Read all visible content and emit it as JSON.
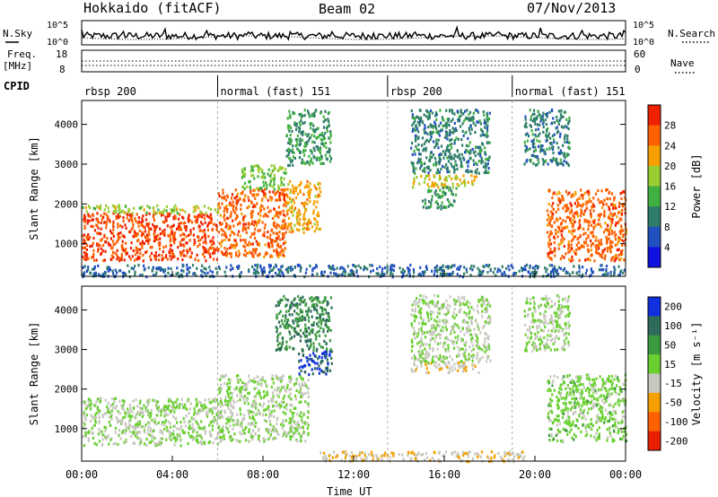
{
  "header": {
    "station": "Hokkaido (fitACF)",
    "beam": "Beam 02",
    "date": "07/Nov/2013"
  },
  "noise_panel": {
    "left_label": "N.Sky",
    "right_label": "N.Search",
    "left_ticks": [
      "10^5",
      "10^0"
    ],
    "right_ticks": [
      "10^5",
      "10^0"
    ]
  },
  "freq_panel": {
    "left_label_1": "Freq.",
    "left_label_2": "[MHz]",
    "right_label": "Nave",
    "left_ticks": [
      "18",
      "8"
    ],
    "right_ticks": [
      "60",
      "0"
    ]
  },
  "cpid": {
    "label": "CPID",
    "segments": [
      {
        "start_hour": 0,
        "name": "rbsp 200"
      },
      {
        "start_hour": 6,
        "name": "normal (fast) 151"
      },
      {
        "start_hour": 13.5,
        "name": "rbsp 200"
      },
      {
        "start_hour": 19,
        "name": "normal (fast) 151"
      }
    ]
  },
  "chart_data": [
    {
      "type": "heatmap",
      "title": "",
      "xlabel": "Time UT",
      "ylabel": "Slant Range [km]",
      "xlim": [
        0,
        24
      ],
      "ylim": [
        180,
        4600
      ],
      "x_ticks": [
        "00:00",
        "04:00",
        "08:00",
        "12:00",
        "16:00",
        "20:00",
        "00:00"
      ],
      "y_ticks": [
        1000,
        2000,
        3000,
        4000
      ],
      "colorbar": {
        "label": "Power [dB]",
        "ticks": [
          4,
          8,
          12,
          16,
          20,
          24,
          28
        ],
        "range": [
          0,
          32
        ],
        "colors": [
          "#1010e0",
          "#2050c0",
          "#2e7d6a",
          "#40b040",
          "#9acd32",
          "#f5a000",
          "#ff6000",
          "#f02000"
        ]
      },
      "regions": [
        {
          "t0": 0.0,
          "t1": 6.0,
          "r0": 600,
          "r1": 1800,
          "value": 28
        },
        {
          "t0": 6.0,
          "t1": 9.0,
          "r0": 700,
          "r1": 2400,
          "value": 26
        },
        {
          "t0": 0.0,
          "t1": 6.0,
          "r0": 1800,
          "r1": 2000,
          "value": 18
        },
        {
          "t0": 9.0,
          "t1": 10.5,
          "r0": 1300,
          "r1": 2600,
          "value": 22
        },
        {
          "t0": 7.0,
          "t1": 9.0,
          "r0": 2400,
          "r1": 3000,
          "value": 16
        },
        {
          "t0": 9.0,
          "t1": 11.0,
          "r0": 3000,
          "r1": 4400,
          "value": 12
        },
        {
          "t0": 14.5,
          "t1": 17.5,
          "r0": 2450,
          "r1": 2750,
          "value": 20
        },
        {
          "t0": 15.0,
          "t1": 16.5,
          "r0": 1900,
          "r1": 2450,
          "value": 12
        },
        {
          "t0": 14.5,
          "t1": 18.0,
          "r0": 2800,
          "r1": 4400,
          "value": 10
        },
        {
          "t0": 20.5,
          "t1": 24.0,
          "r0": 600,
          "r1": 2400,
          "value": 26
        },
        {
          "t0": 19.5,
          "t1": 21.5,
          "r0": 3000,
          "r1": 4400,
          "value": 10
        },
        {
          "t0": 0.0,
          "t1": 24.0,
          "r0": 200,
          "r1": 500,
          "value": 8
        }
      ]
    },
    {
      "type": "heatmap",
      "title": "",
      "xlabel": "Time UT",
      "ylabel": "Slant Range [km]",
      "xlim": [
        0,
        24
      ],
      "ylim": [
        180,
        4600
      ],
      "x_ticks": [
        "00:00",
        "04:00",
        "08:00",
        "12:00",
        "16:00",
        "20:00",
        "00:00"
      ],
      "y_ticks": [
        1000,
        2000,
        3000,
        4000
      ],
      "colorbar": {
        "label": "Velocity [m s⁻¹]",
        "ticks": [
          200,
          100,
          50,
          15,
          -15,
          -50,
          -100,
          -200
        ],
        "range": [
          -250,
          250
        ],
        "colors": [
          "#1030e0",
          "#2e6b5a",
          "#3c9a40",
          "#6ad030",
          "#c8c8c0",
          "#f5a000",
          "#ff6000",
          "#e82000"
        ]
      },
      "regions": [
        {
          "t0": 0.0,
          "t1": 6.0,
          "r0": 600,
          "r1": 1800,
          "value": 0
        },
        {
          "t0": 6.0,
          "t1": 10.0,
          "r0": 700,
          "r1": 2400,
          "value": 0
        },
        {
          "t0": 9.5,
          "t1": 11.0,
          "r0": 2400,
          "r1": 3000,
          "value": 200
        },
        {
          "t0": 8.5,
          "t1": 11.0,
          "r0": 3000,
          "r1": 4400,
          "value": 120
        },
        {
          "t0": 14.5,
          "t1": 17.5,
          "r0": 2450,
          "r1": 2700,
          "value": -50
        },
        {
          "t0": 14.5,
          "t1": 18.0,
          "r0": 2700,
          "r1": 4400,
          "value": 0
        },
        {
          "t0": 20.5,
          "t1": 24.0,
          "r0": 700,
          "r1": 2400,
          "value": 25
        },
        {
          "t0": 19.5,
          "t1": 21.5,
          "r0": 3000,
          "r1": 4400,
          "value": 0
        },
        {
          "t0": 10.5,
          "t1": 19.5,
          "r0": 200,
          "r1": 450,
          "value": -50
        }
      ]
    }
  ]
}
